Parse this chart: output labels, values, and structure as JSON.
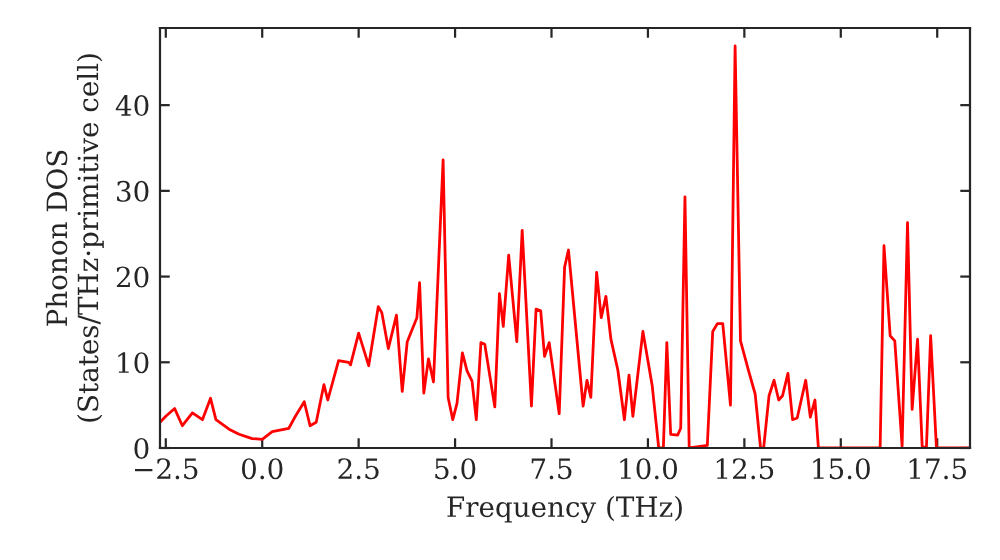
{
  "chart_data": {
    "type": "line",
    "xlabel": "Frequency (THz)",
    "ylabel": "Phonon DOS\n(States/THz·primitive cell)",
    "xlim": [
      -2.65,
      18.35
    ],
    "ylim": [
      0,
      49
    ],
    "xticks": [
      {
        "value": -2.5,
        "label": "−2.5"
      },
      {
        "value": 0,
        "label": "0.0"
      },
      {
        "value": 2.5,
        "label": "2.5"
      },
      {
        "value": 5,
        "label": "5.0"
      },
      {
        "value": 7.5,
        "label": "7.5"
      },
      {
        "value": 10,
        "label": "10.0"
      },
      {
        "value": 12.5,
        "label": "12.5"
      },
      {
        "value": 15,
        "label": "15.0"
      },
      {
        "value": 17.5,
        "label": "17.5"
      }
    ],
    "yticks": [
      0,
      10,
      20,
      30,
      40
    ],
    "grid": false,
    "legend": false,
    "marker": "none",
    "line_style": "solid",
    "series": [
      {
        "color": "#ff0000",
        "x": [
          -2.65,
          -2.5,
          -2.27,
          -2.07,
          -1.81,
          -1.55,
          -1.34,
          -1.2,
          -0.86,
          -0.6,
          -0.26,
          0.0,
          0.26,
          0.69,
          0.86,
          1.09,
          1.24,
          1.4,
          1.6,
          1.7,
          1.98,
          2.24,
          2.29,
          2.5,
          2.76,
          3.01,
          3.1,
          3.27,
          3.48,
          3.63,
          3.76,
          4.01,
          4.08,
          4.19,
          4.31,
          4.44,
          4.69,
          4.82,
          4.94,
          5.05,
          5.19,
          5.31,
          5.44,
          5.55,
          5.67,
          5.77,
          6.03,
          6.15,
          6.25,
          6.39,
          6.6,
          6.74,
          6.98,
          7.1,
          7.22,
          7.32,
          7.44,
          7.7,
          7.84,
          7.94,
          8.32,
          8.42,
          8.52,
          8.67,
          8.79,
          8.91,
          9.04,
          9.22,
          9.39,
          9.51,
          9.61,
          9.87,
          10.11,
          10.28,
          10.4,
          10.49,
          10.59,
          10.77,
          10.85,
          10.96,
          11.07,
          11.54,
          11.68,
          11.8,
          11.94,
          12.14,
          12.26,
          12.4,
          12.61,
          12.78,
          12.92,
          13.0,
          13.14,
          13.27,
          13.39,
          13.49,
          13.63,
          13.75,
          13.87,
          14.09,
          14.21,
          14.33,
          14.42,
          16.02,
          16.12,
          16.28,
          16.4,
          16.59,
          16.73,
          16.85,
          16.99,
          17.11,
          17.22,
          17.33,
          17.48,
          18.35
        ],
        "values": [
          3.0,
          3.7,
          4.6,
          2.6,
          4.1,
          3.3,
          5.8,
          3.3,
          2.2,
          1.6,
          1.1,
          1.0,
          1.9,
          2.3,
          3.7,
          5.4,
          2.6,
          3.0,
          7.4,
          5.6,
          10.2,
          10.0,
          9.7,
          13.4,
          9.6,
          16.5,
          15.8,
          11.6,
          15.5,
          6.6,
          12.4,
          15.2,
          19.3,
          6.4,
          10.4,
          7.7,
          33.6,
          5.9,
          3.3,
          5.2,
          11.1,
          9.0,
          7.8,
          3.3,
          12.3,
          12.1,
          4.8,
          18.0,
          14.2,
          22.5,
          12.4,
          25.4,
          4.9,
          16.2,
          16.0,
          10.7,
          12.3,
          4.0,
          21.1,
          23.1,
          4.9,
          7.9,
          5.9,
          20.5,
          15.2,
          17.7,
          12.7,
          9.1,
          3.3,
          8.5,
          3.7,
          13.6,
          7.3,
          0,
          0,
          12.3,
          1.6,
          1.5,
          2.3,
          29.3,
          0,
          0.3,
          13.6,
          14.5,
          14.5,
          5.0,
          46.9,
          12.5,
          9.0,
          6.3,
          0,
          0,
          6.1,
          7.9,
          5.6,
          6.1,
          8.7,
          3.3,
          3.5,
          7.9,
          3.6,
          5.6,
          0,
          0,
          23.6,
          13.1,
          12.5,
          0.2,
          26.3,
          4.5,
          12.7,
          0.2,
          0,
          13.1,
          0,
          0
        ]
      }
    ]
  }
}
